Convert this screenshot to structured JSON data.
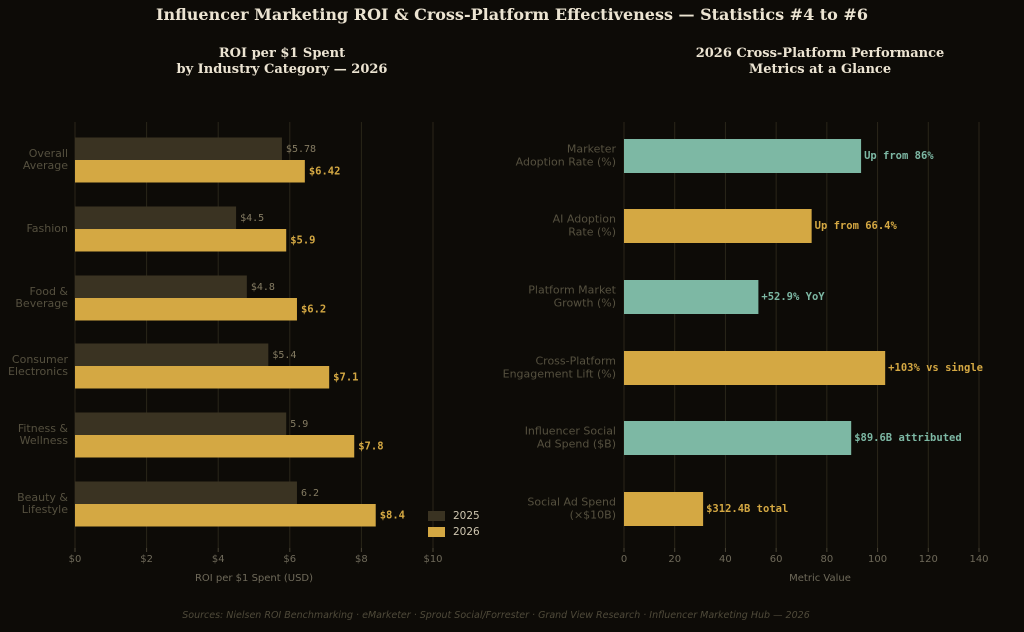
{
  "figure": {
    "title": "Influencer Marketing ROI & Cross-Platform Effectiveness — Statistics #4 to #6",
    "source": "Sources: Nielsen ROI Benchmarking · eMarketer · Sprout Social/Forrester · Grand View Research · Influencer Marketing Hub — 2026"
  },
  "colors": {
    "background": "#0d0b07",
    "gold": "#d4a843",
    "dark_bar": "#3a3322",
    "teal": "#7db8a4",
    "title": "#ece4d2",
    "muted_text": "#55503f",
    "axis_text": "#6f6a5a",
    "grid": "#2a2619"
  },
  "chart_data": [
    {
      "type": "bar",
      "orientation": "horizontal",
      "title": "ROI per $1 Spent\nby Industry Category — 2026",
      "categories": [
        "Overall\nAverage",
        "Fashion",
        "Food &\nBeverage",
        "Consumer\nElectronics",
        "Fitness &\nWellness",
        "Beauty &\nLifestyle"
      ],
      "series": [
        {
          "name": "2025",
          "values": [
            5.78,
            4.5,
            4.8,
            5.4,
            5.9,
            6.2
          ],
          "labels": [
            "$5.78",
            "$4.5",
            "$4.8",
            "$5.4",
            "5.9",
            "6.2"
          ]
        },
        {
          "name": "2026",
          "values": [
            6.42,
            5.9,
            6.2,
            7.1,
            7.8,
            8.4
          ],
          "labels": [
            "$6.42",
            "$5.9",
            "$6.2",
            "$7.1",
            "$7.8",
            "$8.4"
          ]
        }
      ],
      "xlabel": "ROI per $1 Spent (USD)",
      "xlim": [
        0,
        10
      ],
      "xticks": [
        0,
        2,
        4,
        6,
        8,
        10
      ],
      "xtick_labels": [
        "$0",
        "$2",
        "$4",
        "$6",
        "$8",
        "$10"
      ],
      "grid": "vertical",
      "legend": "bottom-right"
    },
    {
      "type": "bar",
      "orientation": "horizontal",
      "title": "2026 Cross-Platform Performance\nMetrics at a Glance",
      "categories": [
        "Marketer\nAdoption Rate (%)",
        "AI Adoption\nRate (%)",
        "Platform Market\nGrowth (%)",
        "Cross-Platform\nEngagement Lift (%)",
        "Influencer Social\nAd Spend ($B)",
        "Social Ad Spend\n(×$10B)"
      ],
      "values": [
        93.5,
        74,
        53,
        103,
        89.6,
        31.2
      ],
      "colors": [
        "teal",
        "gold",
        "teal",
        "gold",
        "teal",
        "gold"
      ],
      "labels": [
        "Up from 86%",
        "Up from 66.4%",
        "+52.9% YoY",
        "+103% vs single",
        "$89.6B attributed",
        "$312.4B total"
      ],
      "xlabel": "Metric Value",
      "xlim": [
        0,
        140
      ],
      "xticks": [
        0,
        20,
        40,
        60,
        80,
        100,
        120,
        140
      ],
      "xtick_labels": [
        "0",
        "20",
        "40",
        "60",
        "80",
        "100",
        "120",
        "140"
      ],
      "grid": "vertical"
    }
  ]
}
